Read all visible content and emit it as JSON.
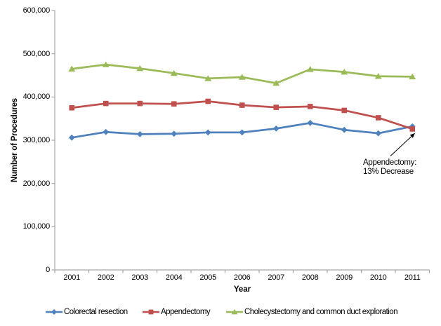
{
  "chart_data": {
    "type": "line",
    "title": "",
    "xlabel": "Year",
    "ylabel": "Number of Procedures",
    "x": [
      "2001",
      "2002",
      "2003",
      "2004",
      "2005",
      "2006",
      "2007",
      "2008",
      "2009",
      "2010",
      "2011"
    ],
    "ylim": [
      0,
      600000
    ],
    "yticks": [
      0,
      100000,
      200000,
      300000,
      400000,
      500000,
      600000
    ],
    "ytick_labels": [
      "0",
      "100,000",
      "200,000",
      "300,000",
      "400,000",
      "500,000",
      "600,000"
    ],
    "grid": false,
    "legend_position": "bottom",
    "axis_color": "#A6A6A6",
    "series": [
      {
        "name": "Colorectal resection",
        "color": "#4F81BD",
        "marker": "diamond",
        "values": [
          306000,
          319000,
          314000,
          315000,
          318000,
          318000,
          327000,
          340000,
          324000,
          316000,
          332000
        ]
      },
      {
        "name": "Appendectomy",
        "color": "#C0504D",
        "marker": "square",
        "values": [
          375000,
          385000,
          385000,
          384000,
          390000,
          381000,
          376000,
          378000,
          369000,
          352000,
          326000
        ]
      },
      {
        "name": "Cholecystectomy and common duct exploration",
        "color": "#9BBB59",
        "marker": "triangle",
        "values": [
          465000,
          475000,
          466000,
          455000,
          443000,
          446000,
          432000,
          464000,
          458000,
          448000,
          447000
        ]
      }
    ],
    "annotation": {
      "text_lines": [
        "Appendectomy:",
        "13% Decrease"
      ],
      "points_to": {
        "series": "Appendectomy",
        "x": "2011"
      }
    }
  }
}
